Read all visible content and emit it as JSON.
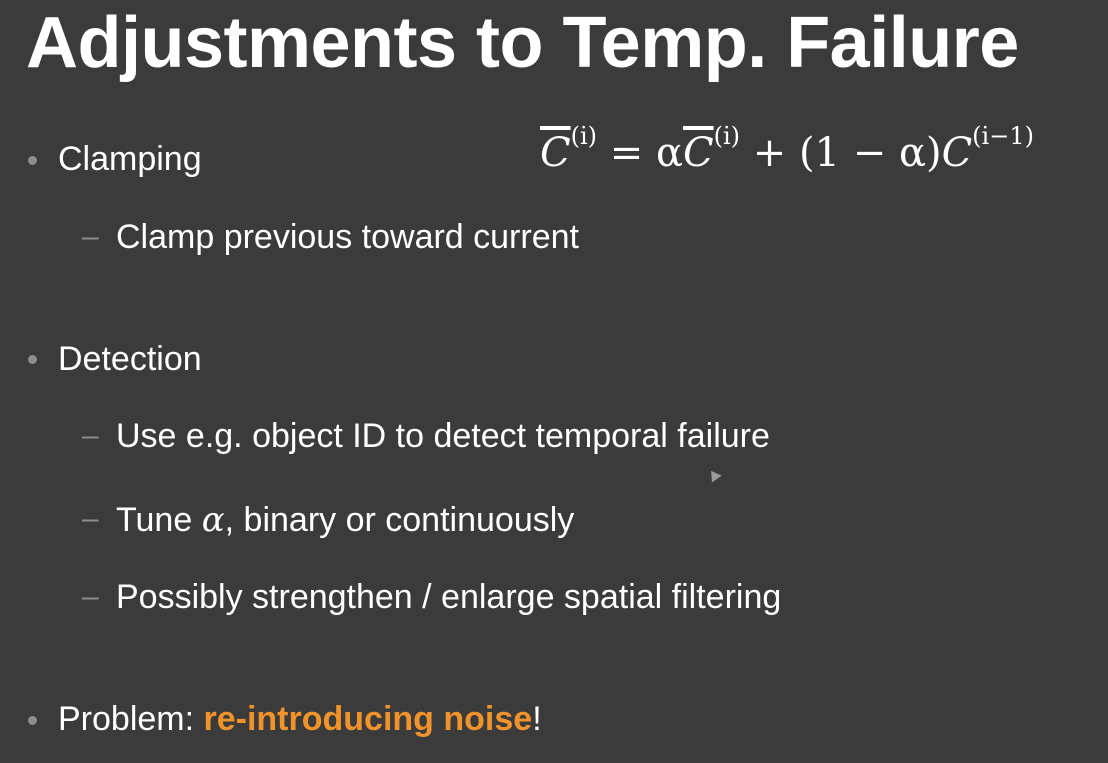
{
  "slide": {
    "title": "Adjustments to Temp. Failure",
    "formula": {
      "lhs": "C",
      "lhs_sup": "(i)",
      "eq": " = α",
      "mid": "C",
      "mid_sup": "(i)",
      "plus": " + (1 − α)",
      "rhs": "C",
      "rhs_sup": "(i−1)"
    },
    "items": [
      {
        "level": 1,
        "text": "Clamping"
      },
      {
        "level": 2,
        "text": "Clamp previous toward current"
      },
      {
        "level": 1,
        "text": "Detection"
      },
      {
        "level": 2,
        "text": "Use e.g. object ID to detect temporal failure"
      },
      {
        "level": 2,
        "text_pre": "Tune ",
        "alpha": "α",
        "text_post": ", binary or continuously"
      },
      {
        "level": 2,
        "text": "Possibly strengthen / enlarge spatial filtering"
      },
      {
        "level": 1,
        "text_pre": "Problem: ",
        "highlight": "re-introducing noise",
        "text_post": "!"
      }
    ],
    "highlight_color": "#f0932b",
    "background_color": "#3b3b3b"
  }
}
